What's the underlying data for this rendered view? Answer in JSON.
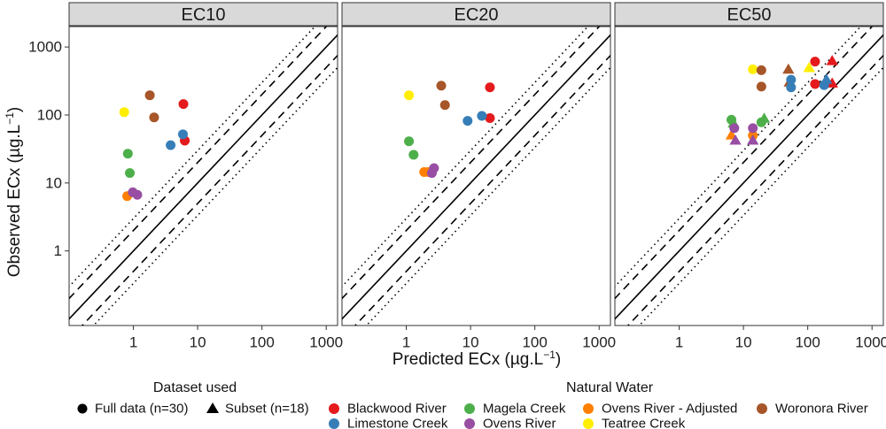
{
  "chart_data": {
    "type": "scatter",
    "facets": [
      "EC10",
      "EC20",
      "EC50"
    ],
    "xlabel_prefix": "Predicted ECx (",
    "xlabel_unit": "µg.L",
    "xlabel_exp": "−1",
    "xlabel_suffix": ")",
    "ylabel_prefix": "Observed ECx (",
    "ylabel_unit": "µg.L",
    "ylabel_exp": "−1",
    "ylabel_suffix": ")",
    "x_scale": "log10",
    "y_scale": "log10",
    "xlim": [
      0.1,
      1500
    ],
    "ylim": [
      0.08,
      2000
    ],
    "x_ticks": [
      1,
      10,
      100,
      1000
    ],
    "x_tick_labels": [
      "1",
      "10",
      "100",
      "1000"
    ],
    "y_ticks": [
      1,
      10,
      100,
      1000
    ],
    "y_tick_labels": [
      "1",
      "10",
      "100",
      "1000"
    ],
    "reference_lines": [
      {
        "factor": 1,
        "style": "solid"
      },
      {
        "factor": 2,
        "style": "dashed"
      },
      {
        "factor": 0.5,
        "style": "dashed"
      },
      {
        "factor": 3,
        "style": "dotted"
      },
      {
        "factor": 0.3333,
        "style": "dotted"
      }
    ],
    "legend_position": "bottom",
    "shape_legend": {
      "title": "Dataset used",
      "entries": [
        {
          "label": "Full data (n=30)",
          "shape": "circle"
        },
        {
          "label": "Subset (n=18)",
          "shape": "triangle"
        }
      ]
    },
    "color_legend": {
      "title": "Natural Water",
      "entries": [
        {
          "label": "Blackwood River",
          "color": "#e41a1c"
        },
        {
          "label": "Limestone Creek",
          "color": "#377eb8"
        },
        {
          "label": "Magela Creek",
          "color": "#4daf4a"
        },
        {
          "label": "Ovens River",
          "color": "#984ea3"
        },
        {
          "label": "Ovens River - Adjusted",
          "color": "#ff7f00"
        },
        {
          "label": "Teatree Creek",
          "color": "#ffee00"
        },
        {
          "label": "Woronora River",
          "color": "#a65628"
        }
      ]
    },
    "points": {
      "EC10": [
        {
          "x": 0.72,
          "y": 110,
          "water": "Teatree Creek",
          "shape": "circle"
        },
        {
          "x": 1.8,
          "y": 195,
          "water": "Woronora River",
          "shape": "circle"
        },
        {
          "x": 2.1,
          "y": 92,
          "water": "Woronora River",
          "shape": "circle"
        },
        {
          "x": 6.0,
          "y": 145,
          "water": "Blackwood River",
          "shape": "circle"
        },
        {
          "x": 6.3,
          "y": 42,
          "water": "Blackwood River",
          "shape": "circle"
        },
        {
          "x": 5.9,
          "y": 52,
          "water": "Limestone Creek",
          "shape": "circle"
        },
        {
          "x": 3.8,
          "y": 36,
          "water": "Limestone Creek",
          "shape": "circle"
        },
        {
          "x": 0.82,
          "y": 27,
          "water": "Magela Creek",
          "shape": "circle"
        },
        {
          "x": 0.88,
          "y": 14,
          "water": "Magela Creek",
          "shape": "circle"
        },
        {
          "x": 0.8,
          "y": 6.4,
          "water": "Ovens River - Adjusted",
          "shape": "circle"
        },
        {
          "x": 0.98,
          "y": 7.3,
          "water": "Ovens River",
          "shape": "circle"
        },
        {
          "x": 1.15,
          "y": 6.7,
          "water": "Ovens River",
          "shape": "circle"
        }
      ],
      "EC20": [
        {
          "x": 1.1,
          "y": 195,
          "water": "Teatree Creek",
          "shape": "circle"
        },
        {
          "x": 3.5,
          "y": 270,
          "water": "Woronora River",
          "shape": "circle"
        },
        {
          "x": 4.0,
          "y": 140,
          "water": "Woronora River",
          "shape": "circle"
        },
        {
          "x": 20,
          "y": 255,
          "water": "Blackwood River",
          "shape": "circle"
        },
        {
          "x": 20,
          "y": 90,
          "water": "Blackwood River",
          "shape": "circle"
        },
        {
          "x": 15,
          "y": 97,
          "water": "Limestone Creek",
          "shape": "circle"
        },
        {
          "x": 9,
          "y": 82,
          "water": "Limestone Creek",
          "shape": "circle"
        },
        {
          "x": 1.1,
          "y": 41,
          "water": "Magela Creek",
          "shape": "circle"
        },
        {
          "x": 1.3,
          "y": 26,
          "water": "Magela Creek",
          "shape": "circle"
        },
        {
          "x": 1.9,
          "y": 14.5,
          "water": "Ovens River - Adjusted",
          "shape": "circle"
        },
        {
          "x": 2.2,
          "y": 14.5,
          "water": "Ovens River - Adjusted",
          "shape": "circle"
        },
        {
          "x": 2.7,
          "y": 16.5,
          "water": "Ovens River",
          "shape": "circle"
        },
        {
          "x": 2.5,
          "y": 14,
          "water": "Ovens River",
          "shape": "circle"
        }
      ],
      "EC50": [
        {
          "x": 14,
          "y": 470,
          "water": "Teatree Creek",
          "shape": "circle"
        },
        {
          "x": 105,
          "y": 490,
          "water": "Teatree Creek",
          "shape": "triangle"
        },
        {
          "x": 19,
          "y": 455,
          "water": "Woronora River",
          "shape": "circle"
        },
        {
          "x": 19,
          "y": 262,
          "water": "Woronora River",
          "shape": "circle"
        },
        {
          "x": 50,
          "y": 465,
          "water": "Woronora River",
          "shape": "triangle"
        },
        {
          "x": 52,
          "y": 300,
          "water": "Woronora River",
          "shape": "triangle"
        },
        {
          "x": 130,
          "y": 610,
          "water": "Blackwood River",
          "shape": "circle"
        },
        {
          "x": 240,
          "y": 620,
          "water": "Blackwood River",
          "shape": "triangle"
        },
        {
          "x": 130,
          "y": 285,
          "water": "Blackwood River",
          "shape": "circle"
        },
        {
          "x": 240,
          "y": 290,
          "water": "Blackwood River",
          "shape": "triangle"
        },
        {
          "x": 55,
          "y": 255,
          "water": "Limestone Creek",
          "shape": "circle"
        },
        {
          "x": 55,
          "y": 330,
          "water": "Limestone Creek",
          "shape": "circle"
        },
        {
          "x": 180,
          "y": 275,
          "water": "Limestone Creek",
          "shape": "circle"
        },
        {
          "x": 195,
          "y": 330,
          "water": "Limestone Creek",
          "shape": "triangle"
        },
        {
          "x": 6.5,
          "y": 85,
          "water": "Magela Creek",
          "shape": "circle"
        },
        {
          "x": 7,
          "y": 75,
          "water": "Magela Creek",
          "shape": "triangle"
        },
        {
          "x": 19,
          "y": 78,
          "water": "Magela Creek",
          "shape": "circle"
        },
        {
          "x": 21,
          "y": 88,
          "water": "Magela Creek",
          "shape": "triangle"
        },
        {
          "x": 6.5,
          "y": 50,
          "water": "Ovens River - Adjusted",
          "shape": "triangle"
        },
        {
          "x": 14,
          "y": 50,
          "water": "Ovens River - Adjusted",
          "shape": "circle"
        },
        {
          "x": 7.2,
          "y": 64,
          "water": "Ovens River",
          "shape": "circle"
        },
        {
          "x": 7.5,
          "y": 42,
          "water": "Ovens River",
          "shape": "triangle"
        },
        {
          "x": 14,
          "y": 64,
          "water": "Ovens River",
          "shape": "circle"
        },
        {
          "x": 14,
          "y": 42,
          "water": "Ovens River",
          "shape": "triangle"
        }
      ]
    }
  }
}
